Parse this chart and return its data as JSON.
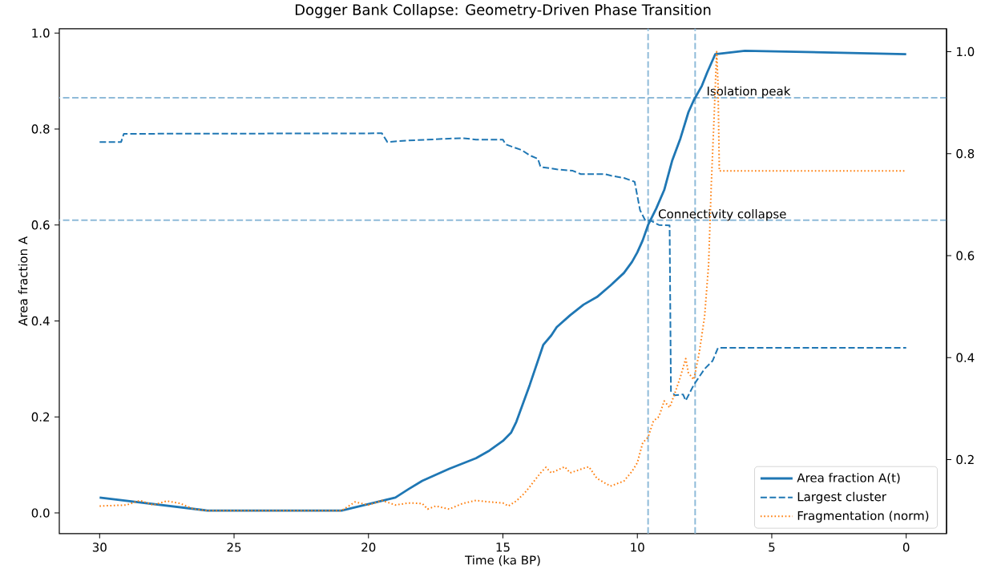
{
  "chart_data": {
    "type": "line",
    "title": "Dogger Bank Collapse: Geometry-Driven Phase Transition",
    "xlabel": "Time (ka BP)",
    "ylabel": "Area fraction A",
    "xlim": [
      31.5,
      -1.5
    ],
    "xticks": [
      30,
      25,
      20,
      15,
      10,
      5,
      0
    ],
    "ylim": [
      -0.043,
      1.009
    ],
    "yticks": [
      {
        "value": 0,
        "label": "0.0"
      },
      {
        "value": 0.2,
        "label": "0.2"
      },
      {
        "value": 0.4,
        "label": "0.4"
      },
      {
        "value": 0.6,
        "label": "0.6"
      },
      {
        "value": 0.8,
        "label": "0.8"
      },
      {
        "value": 1,
        "label": "1.0"
      }
    ],
    "y2lim": [
      0.055,
      1.045
    ],
    "y2ticks": [
      0.2,
      0.4,
      0.6,
      0.8,
      {
        "value": 1,
        "label": "1.0"
      }
    ],
    "legend": "bottom right",
    "series": [
      {
        "name": "Area fraction A(t)",
        "color": "#1f77b4",
        "line_style": "solid",
        "axis": "y",
        "x": [
          30,
          26,
          21,
          19,
          18.5,
          18,
          17,
          16,
          15.5,
          15,
          14.7,
          14.5,
          14,
          13.5,
          13.2,
          13,
          12.5,
          12,
          11.5,
          11,
          10.5,
          10.2,
          10,
          9.8,
          9.6,
          9.3,
          9,
          8.7,
          8.4,
          8.1,
          7.9,
          7.6,
          7.4,
          7.1,
          6,
          0
        ],
        "values": [
          0.032,
          0.005,
          0.005,
          0.032,
          0.05,
          0.067,
          0.092,
          0.114,
          0.13,
          0.15,
          0.167,
          0.19,
          0.267,
          0.35,
          0.37,
          0.387,
          0.412,
          0.434,
          0.45,
          0.474,
          0.5,
          0.523,
          0.543,
          0.568,
          0.6,
          0.634,
          0.673,
          0.735,
          0.78,
          0.835,
          0.86,
          0.89,
          0.918,
          0.956,
          0.963,
          0.956
        ]
      },
      {
        "name": "Largest cluster",
        "color": "#1f77b4",
        "line_style": "dashed",
        "axis": "y",
        "x": [
          30,
          29.2,
          29.1,
          19.5,
          19.3,
          18.5,
          17,
          16.5,
          16,
          15,
          14.9,
          14.3,
          14,
          13.7,
          13.6,
          13,
          12.4,
          12.1,
          11.2,
          11,
          10.5,
          10.1,
          9.9,
          9.7,
          9.5,
          9.2,
          8.8,
          8.75,
          8.6,
          8.3,
          8.2,
          7.9,
          7.5,
          7.2,
          7,
          0
        ],
        "values": [
          0.773,
          0.773,
          0.79,
          0.791,
          0.773,
          0.776,
          0.78,
          0.781,
          0.778,
          0.778,
          0.768,
          0.756,
          0.745,
          0.738,
          0.721,
          0.716,
          0.713,
          0.706,
          0.706,
          0.703,
          0.698,
          0.69,
          0.631,
          0.609,
          0.609,
          0.6,
          0.599,
          0.254,
          0.245,
          0.247,
          0.234,
          0.267,
          0.3,
          0.317,
          0.344,
          0.344
        ]
      },
      {
        "name": "Fragmentation (norm)",
        "color": "#ff7f0e",
        "line_style": "dotted",
        "axis": "y2",
        "x": [
          30,
          29,
          28.5,
          28,
          27.5,
          27,
          26.5,
          26,
          21,
          20.5,
          20,
          19.5,
          19,
          18.5,
          18,
          17.8,
          17.5,
          17,
          16.5,
          16,
          15.5,
          15,
          14.8,
          14.5,
          14.2,
          14,
          13.6,
          13.4,
          13.2,
          12.7,
          12.5,
          12,
          11.8,
          11.5,
          11,
          10.5,
          10.2,
          10,
          9.8,
          9.6,
          9.4,
          9.2,
          9,
          8.8,
          8.6,
          8.4,
          8.2,
          8.1,
          7.9,
          7.7,
          7.5,
          7.35,
          7.25,
          7.15,
          7.05,
          7,
          6.95,
          0
        ],
        "values": [
          0.109,
          0.111,
          0.12,
          0.111,
          0.119,
          0.114,
          0.103,
          0.1,
          0.1,
          0.117,
          0.111,
          0.12,
          0.111,
          0.115,
          0.114,
          0.103,
          0.109,
          0.103,
          0.114,
          0.12,
          0.117,
          0.115,
          0.109,
          0.119,
          0.134,
          0.147,
          0.174,
          0.185,
          0.174,
          0.186,
          0.174,
          0.183,
          0.186,
          0.163,
          0.148,
          0.158,
          0.177,
          0.194,
          0.233,
          0.244,
          0.276,
          0.284,
          0.315,
          0.302,
          0.331,
          0.362,
          0.398,
          0.37,
          0.357,
          0.409,
          0.48,
          0.582,
          0.739,
          0.865,
          1.0,
          0.936,
          0.766,
          0.766
        ]
      }
    ],
    "ref_lines": [
      {
        "axis": "y",
        "value": 0.61,
        "color": "#8fbbd9",
        "line_style": "dashed"
      },
      {
        "axis": "y",
        "value": 0.865,
        "color": "#8fbbd9",
        "line_style": "dashed"
      },
      {
        "axis": "x",
        "value": 9.6,
        "color": "#8fbbd9",
        "line_style": "dashed"
      },
      {
        "axis": "x",
        "value": 7.85,
        "color": "#8fbbd9",
        "line_style": "dashed"
      }
    ],
    "annotations": [
      {
        "text": "Connectivity collapse",
        "x": 9.3,
        "y": 0.614
      },
      {
        "text": "Isolation peak",
        "x": 7.5,
        "y": 0.87
      }
    ]
  }
}
